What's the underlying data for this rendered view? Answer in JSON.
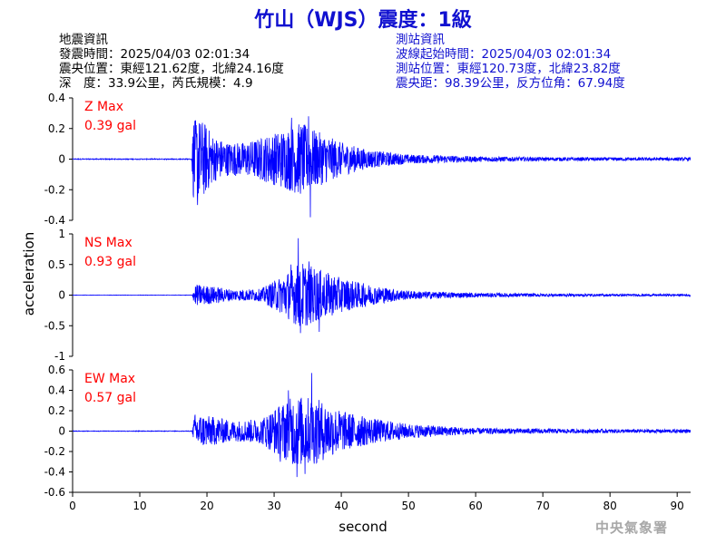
{
  "title": "竹山（WJS）震度：1級",
  "quake_info": {
    "heading": "地震資訊",
    "time": "發震時間：2025/04/03 02:01:34",
    "epicenter": "震央位置：東經121.62度，北緯24.16度",
    "depth_magnitude": "深　度：33.9公里，芮氏規模：4.9"
  },
  "station_info": {
    "heading": "測站資訊",
    "wave_start": "波線起始時間：2025/04/03 02:01:34",
    "location": "測站位置：東經120.73度，北緯23.82度",
    "distance": "震央距：98.39公里，反方位角：67.94度"
  },
  "watermark": "中央氣象署",
  "colors": {
    "trace": "#0000ff",
    "title": "#1010d0",
    "max_label": "#ff0000",
    "axes": "#000000"
  },
  "chart_data": [
    {
      "type": "line",
      "component": "Z",
      "max_label": "Z Max",
      "max_value": "0.39 gal",
      "ylim": [
        -0.4,
        0.4
      ],
      "yticks": [
        -0.4,
        -0.2,
        0,
        0.2,
        0.4
      ],
      "ytick_labels": [
        "-0.4",
        "-0.2",
        "0",
        "0.2",
        "0.4"
      ],
      "noise": 0.006,
      "envelope": [
        [
          0,
          0.006
        ],
        [
          17.7,
          0.006
        ],
        [
          18.0,
          0.27
        ],
        [
          19.5,
          0.25
        ],
        [
          21,
          0.15
        ],
        [
          23,
          0.11
        ],
        [
          26,
          0.11
        ],
        [
          30,
          0.17
        ],
        [
          34,
          0.24
        ],
        [
          36,
          0.19
        ],
        [
          40,
          0.11
        ],
        [
          44,
          0.06
        ],
        [
          50,
          0.03
        ],
        [
          60,
          0.018
        ],
        [
          70,
          0.012
        ],
        [
          92,
          0.01
        ]
      ],
      "peaks": [
        [
          18.2,
          0.25
        ],
        [
          18.6,
          -0.3
        ],
        [
          35.4,
          -0.38
        ],
        [
          35.1,
          0.28
        ],
        [
          32.6,
          0.27
        ]
      ]
    },
    {
      "type": "line",
      "component": "NS",
      "max_label": "NS Max",
      "max_value": "0.93 gal",
      "ylim": [
        -1,
        1
      ],
      "yticks": [
        -1,
        -0.5,
        0,
        0.5,
        1
      ],
      "ytick_labels": [
        "-1",
        "-0.5",
        "0",
        "0.5",
        "1"
      ],
      "noise": 0.006,
      "envelope": [
        [
          0,
          0.005
        ],
        [
          17.8,
          0.005
        ],
        [
          18.2,
          0.18
        ],
        [
          21,
          0.14
        ],
        [
          24,
          0.09
        ],
        [
          28,
          0.1
        ],
        [
          31,
          0.3
        ],
        [
          34,
          0.55
        ],
        [
          36,
          0.45
        ],
        [
          40,
          0.28
        ],
        [
          45,
          0.15
        ],
        [
          50,
          0.07
        ],
        [
          60,
          0.035
        ],
        [
          75,
          0.02
        ],
        [
          92,
          0.016
        ]
      ],
      "peaks": [
        [
          33.6,
          0.93
        ],
        [
          33.9,
          -0.62
        ],
        [
          36.7,
          -0.6
        ],
        [
          35.2,
          0.55
        ],
        [
          32.5,
          0.5
        ]
      ]
    },
    {
      "type": "line",
      "component": "EW",
      "max_label": "EW Max",
      "max_value": "0.57 gal",
      "ylim": [
        -0.6,
        0.6
      ],
      "yticks": [
        -0.6,
        -0.4,
        -0.2,
        0,
        0.2,
        0.4,
        0.6
      ],
      "ytick_labels": [
        "-0.6",
        "-0.4",
        "-0.2",
        "0",
        "0.2",
        "0.4",
        "0.6"
      ],
      "noise": 0.006,
      "envelope": [
        [
          0,
          0.005
        ],
        [
          17.8,
          0.005
        ],
        [
          18.2,
          0.17
        ],
        [
          21,
          0.14
        ],
        [
          24,
          0.1
        ],
        [
          28,
          0.12
        ],
        [
          30,
          0.22
        ],
        [
          33,
          0.35
        ],
        [
          36,
          0.33
        ],
        [
          40,
          0.2
        ],
        [
          45,
          0.12
        ],
        [
          50,
          0.07
        ],
        [
          55,
          0.05
        ],
        [
          60,
          0.03
        ],
        [
          75,
          0.02
        ],
        [
          92,
          0.017
        ]
      ],
      "peaks": [
        [
          35.6,
          0.57
        ],
        [
          33.4,
          -0.45
        ],
        [
          32.1,
          0.4
        ],
        [
          34.6,
          -0.42
        ],
        [
          30.9,
          -0.3
        ]
      ]
    }
  ],
  "x_axis": {
    "label": "second",
    "xlim": [
      0,
      92
    ],
    "ticks": [
      0,
      10,
      20,
      30,
      40,
      50,
      60,
      70,
      80,
      90
    ],
    "tick_labels": [
      "0",
      "10",
      "20",
      "30",
      "40",
      "50",
      "60",
      "70",
      "80",
      "90"
    ]
  },
  "y_axis_label": "acceleration"
}
